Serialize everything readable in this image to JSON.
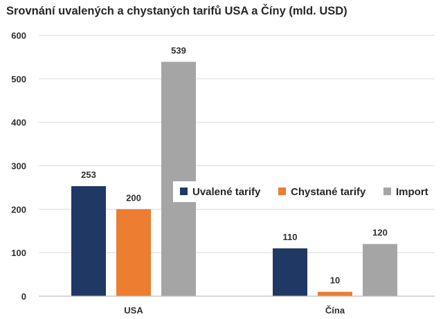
{
  "chart_data": {
    "type": "bar",
    "title": "Srovnání uvalených a chystaných tarifů USA a Číny (mld. USD)",
    "xlabel": "",
    "ylabel": "",
    "ylim": [
      0,
      600
    ],
    "yticks": [
      0,
      100,
      200,
      300,
      400,
      500,
      600
    ],
    "grid": true,
    "legend_position": "right",
    "categories": [
      "USA",
      "Čína"
    ],
    "series": [
      {
        "name": "Uvalené tarify",
        "color": "#203864",
        "values": [
          253,
          110
        ]
      },
      {
        "name": "Chystané tarify",
        "color": "#ed7d31",
        "values": [
          200,
          10
        ]
      },
      {
        "name": "Import",
        "color": "#a5a5a5",
        "values": [
          539,
          120
        ]
      }
    ],
    "data_labels": true
  }
}
